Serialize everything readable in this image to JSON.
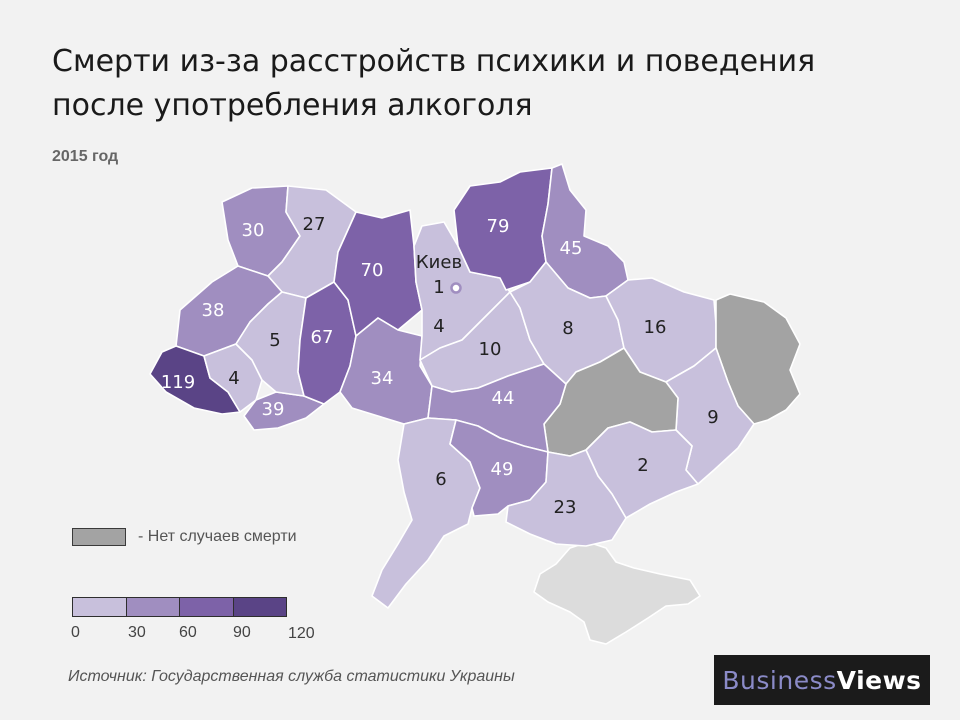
{
  "title": "Смерти из-за расстройств психики и поведения после употребления алкоголя",
  "subtitle": "2015 год",
  "legend": {
    "no_data_label": "- Нет случаев смерти",
    "no_data_color": "#a3a3a3",
    "scale_colors": [
      "#c8c0dc",
      "#a08ec0",
      "#7d62a8",
      "#5a4486"
    ],
    "scale_ticks": [
      "0",
      "30",
      "60",
      "90",
      "120"
    ]
  },
  "source": "Источник: Государственная служба статистики Украины",
  "brand": {
    "part1": "Business",
    "part2": "Views"
  },
  "capital": {
    "name": "Киев",
    "value": "1"
  },
  "regions": [
    {
      "id": "zakarpattia",
      "value": 119
    },
    {
      "id": "chernivtsi",
      "value": 39
    },
    {
      "id": "ivano-frankivsk",
      "value": 4
    },
    {
      "id": "lviv",
      "value": 38
    },
    {
      "id": "volyn",
      "value": 30
    },
    {
      "id": "rivne",
      "value": 27
    },
    {
      "id": "ternopil",
      "value": 5
    },
    {
      "id": "khmelnytskyi",
      "value": 67
    },
    {
      "id": "zhytomyr",
      "value": 70
    },
    {
      "id": "vinnytsia",
      "value": 34
    },
    {
      "id": "kyiv-oblast",
      "value": 4
    },
    {
      "id": "chernihiv",
      "value": 79
    },
    {
      "id": "sumy",
      "value": 45
    },
    {
      "id": "cherkasy",
      "value": 10
    },
    {
      "id": "poltava",
      "value": 8
    },
    {
      "id": "kharkiv",
      "value": 16
    },
    {
      "id": "kirovohrad",
      "value": 44
    },
    {
      "id": "odesa",
      "value": 6
    },
    {
      "id": "mykolaiv",
      "value": 49
    },
    {
      "id": "kherson",
      "value": 23
    },
    {
      "id": "zaporizhzhia",
      "value": 2
    },
    {
      "id": "donetsk",
      "value": 9
    },
    {
      "id": "dnipropetrovsk",
      "value": null
    },
    {
      "id": "luhansk",
      "value": null
    },
    {
      "id": "crimea",
      "value": null
    }
  ]
}
